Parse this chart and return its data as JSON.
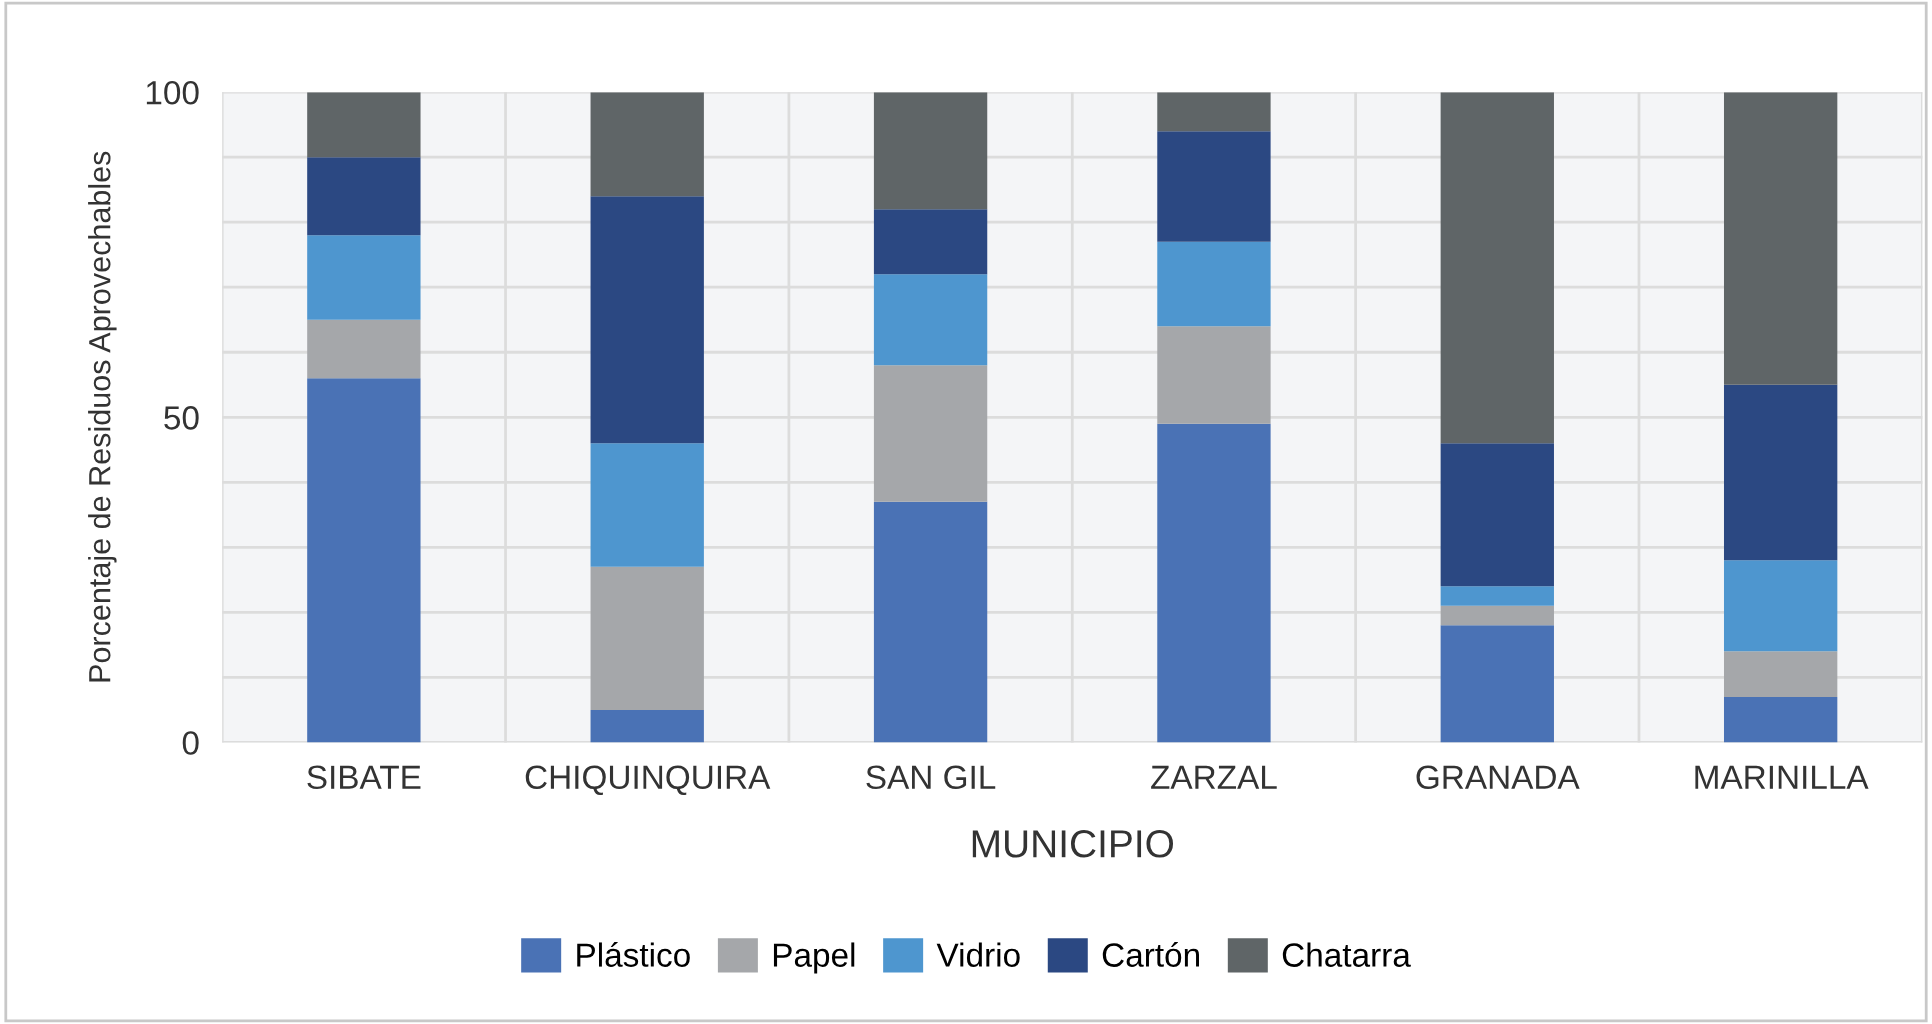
{
  "chart_data": {
    "type": "bar",
    "stacked": true,
    "xlabel": "MUNICIPIO",
    "ylabel": "Porcentaje de Residuos Aprovechables",
    "categories": [
      "SIBATE",
      "CHIQUINQUIRA",
      "SAN GIL",
      "ZARZAL",
      "GRANADA",
      "MARINILLA"
    ],
    "series": [
      {
        "name": "Plástico",
        "color": "#4a72b5",
        "values": [
          56,
          5,
          37,
          49,
          18,
          7
        ]
      },
      {
        "name": "Papel",
        "color": "#a5a7aa",
        "values": [
          9,
          22,
          21,
          15,
          3,
          7
        ]
      },
      {
        "name": "Vidrio",
        "color": "#4e96cf",
        "values": [
          13,
          19,
          14,
          13,
          3,
          14
        ]
      },
      {
        "name": "Cartón",
        "color": "#2b4882",
        "values": [
          12,
          38,
          10,
          17,
          22,
          27
        ]
      },
      {
        "name": "Chatarra",
        "color": "#5f6567",
        "values": [
          10,
          16,
          18,
          6,
          54,
          45
        ]
      }
    ],
    "ylim": [
      0,
      100
    ],
    "yticks": [
      0,
      {
        "value": 10,
        "label": null
      },
      {
        "value": 20,
        "label": null
      },
      {
        "value": 30,
        "label": null
      },
      {
        "value": 40,
        "label": null
      },
      50,
      {
        "value": 60,
        "label": null
      },
      {
        "value": 70,
        "label": null
      },
      {
        "value": 80,
        "label": null
      },
      {
        "value": 90,
        "label": null
      },
      100
    ],
    "grid": true,
    "legend": "bottom"
  }
}
